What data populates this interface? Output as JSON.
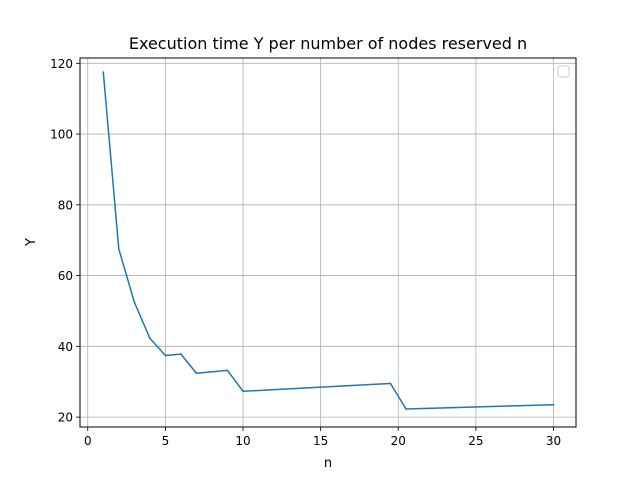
{
  "chart_data": {
    "type": "line",
    "title": "Execution time Y per number of nodes reserved n",
    "xlabel": "n",
    "ylabel": "Y",
    "xlim": [
      -0.5,
      31.45
    ],
    "ylim": [
      17.2,
      121.5
    ],
    "xticks": [
      0,
      5,
      10,
      15,
      20,
      25,
      30
    ],
    "yticks": [
      20,
      40,
      60,
      80,
      100,
      120
    ],
    "grid": true,
    "legend": {
      "position": "top-right",
      "entries": []
    },
    "series": [
      {
        "color": "#1f77b4",
        "x": [
          1,
          2,
          3,
          4,
          5,
          6,
          7,
          9,
          10,
          19.5,
          20.5,
          30
        ],
        "y": [
          117.5,
          67.5,
          52.5,
          42.3,
          37.4,
          37.8,
          32.4,
          33.2,
          27.3,
          29.5,
          22.3,
          23.5
        ]
      }
    ]
  }
}
